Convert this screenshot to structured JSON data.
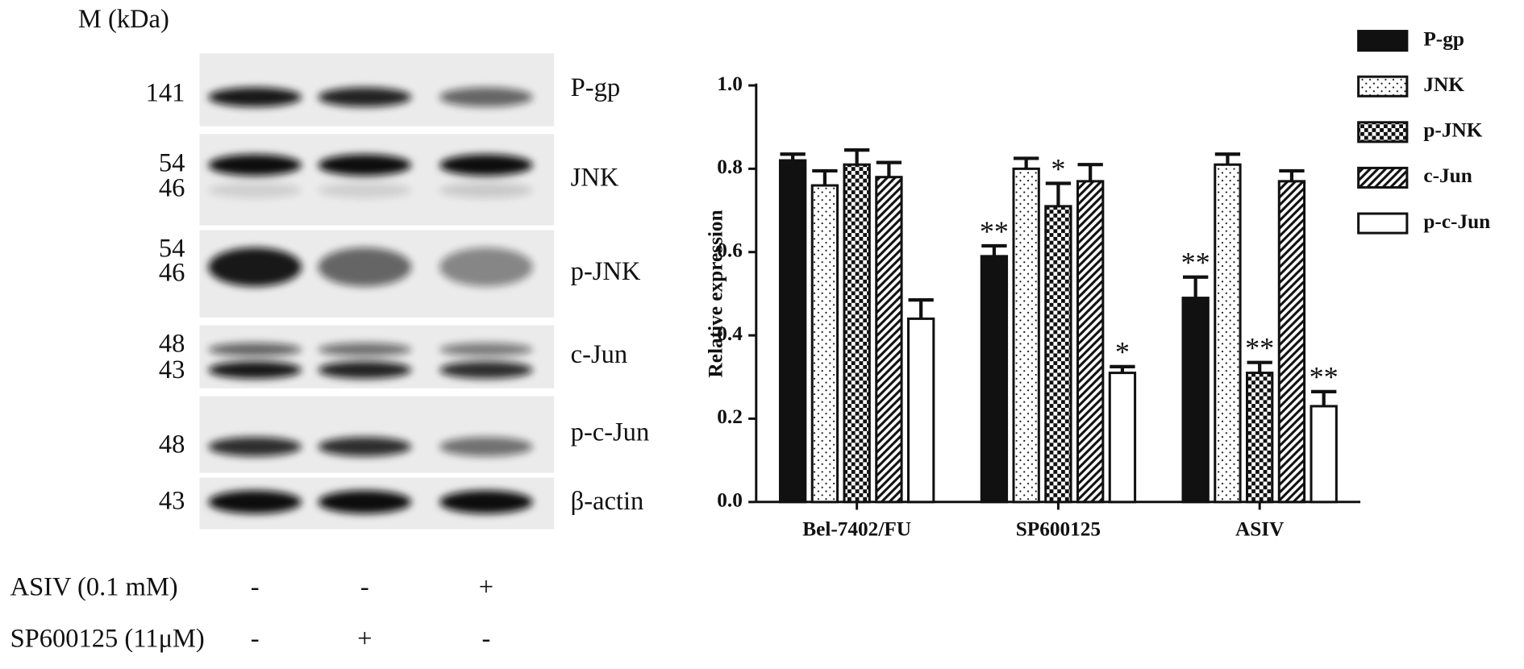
{
  "blot": {
    "marker_header": "M (kDa)",
    "rows": [
      {
        "label": "P-gp",
        "markers": [
          "141"
        ]
      },
      {
        "label": "JNK",
        "markers": [
          "54",
          "46"
        ]
      },
      {
        "label": "p-JNK",
        "markers": [
          "54",
          "46"
        ]
      },
      {
        "label": "c-Jun",
        "markers": [
          "48",
          "43"
        ]
      },
      {
        "label": "p-c-Jun",
        "markers": [
          "48"
        ]
      },
      {
        "label": "β-actin",
        "markers": [
          "43"
        ]
      }
    ],
    "conditions": [
      {
        "label": "ASIV  (0.1 mM)",
        "signs": [
          "-",
          "-",
          "+"
        ]
      },
      {
        "label": "SP600125 (11μM)",
        "signs": [
          "-",
          "+",
          "-"
        ]
      }
    ]
  },
  "chart_data": {
    "type": "bar",
    "y_label": "Relative expression",
    "categories": [
      "Bel-7402/FU",
      "SP600125",
      "ASIV"
    ],
    "ylim": [
      0,
      1
    ],
    "yticks": [
      {
        "value": 0,
        "label": "0.0"
      },
      0.2,
      0.4,
      0.6,
      0.8,
      {
        "value": 1,
        "label": "1.0"
      }
    ],
    "legend": "top-right",
    "series": [
      {
        "name": "P-gp",
        "color": "#111111",
        "pattern": "solid",
        "values": [
          0.82,
          0.59,
          0.49
        ],
        "errors": [
          0.015,
          0.025,
          0.05
        ],
        "significance": [
          null,
          "**",
          "**"
        ]
      },
      {
        "name": "JNK",
        "color": "#111111",
        "pattern": "dots",
        "values": [
          0.76,
          0.8,
          0.81
        ],
        "errors": [
          0.035,
          0.025,
          0.025
        ],
        "significance": [
          null,
          null,
          null
        ]
      },
      {
        "name": "p-JNK",
        "color": "#111111",
        "pattern": "checker",
        "values": [
          0.81,
          0.71,
          0.31
        ],
        "errors": [
          0.035,
          0.055,
          0.025
        ],
        "significance": [
          null,
          "*",
          "**"
        ]
      },
      {
        "name": "c-Jun",
        "color": "#111111",
        "pattern": "hatch",
        "values": [
          0.78,
          0.77,
          0.77
        ],
        "errors": [
          0.035,
          0.04,
          0.025
        ],
        "significance": [
          null,
          null,
          null
        ]
      },
      {
        "name": "p-c-Jun",
        "color": "#111111",
        "pattern": "open",
        "values": [
          0.44,
          0.31,
          0.23
        ],
        "errors": [
          0.045,
          0.015,
          0.035
        ],
        "significance": [
          null,
          "*",
          "**"
        ]
      }
    ]
  }
}
